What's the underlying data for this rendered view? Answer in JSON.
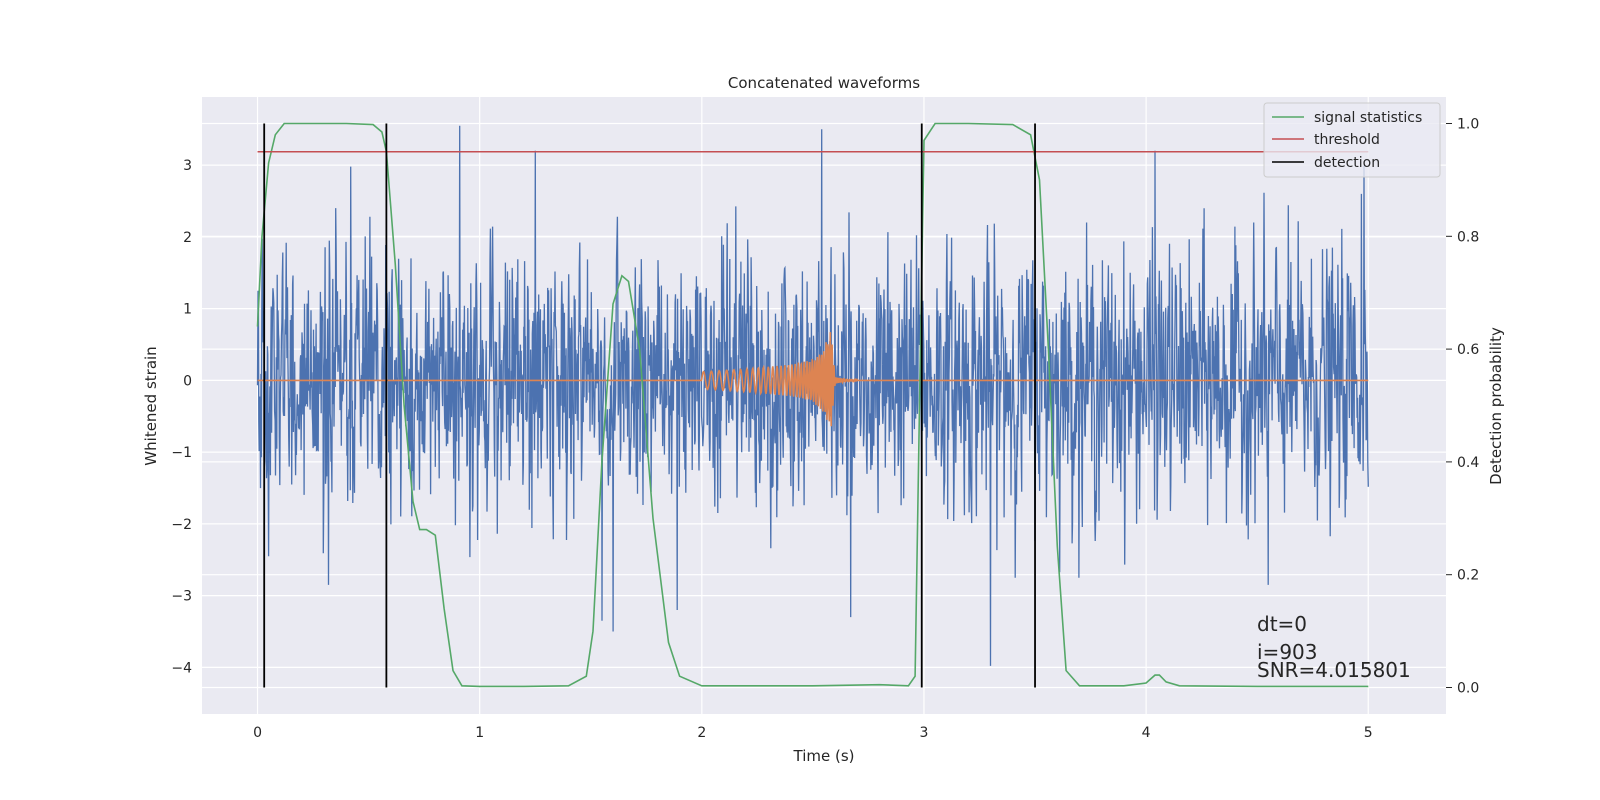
{
  "chart_data": {
    "type": "line",
    "title": "Concatenated waveforms",
    "xlabel": "Time (s)",
    "ylabel": "Whitened strain",
    "y2label": "Detection probability",
    "xlim": [
      -0.25,
      5.35
    ],
    "ylim": [
      -4.65,
      3.95
    ],
    "y2lim": [
      -0.047,
      1.047
    ],
    "xticks": [
      0,
      1,
      2,
      3,
      4,
      5
    ],
    "xtick_labels": [
      "0",
      "1",
      "2",
      "3",
      "4",
      "5"
    ],
    "yticks": [
      -4,
      -3,
      -2,
      -1,
      0,
      1,
      2,
      3
    ],
    "ytick_labels": [
      "−4",
      "−3",
      "−2",
      "−1",
      "0",
      "1",
      "2",
      "3"
    ],
    "y2ticks": [
      0.0,
      0.2,
      0.4,
      0.6,
      0.8,
      1.0
    ],
    "y2tick_labels": [
      "0.0",
      "0.2",
      "0.4",
      "0.6",
      "0.8",
      "1.0"
    ],
    "grid": true,
    "legend_position": "top-right",
    "colors": {
      "whitened_strain": "#4c72b0",
      "injected_waveform": "#dd8452",
      "signal_statistics": "#55a868",
      "threshold": "#c44e52",
      "detection": "#000000",
      "axes_background": "#eaeaf2"
    },
    "series": [
      {
        "key": "whitened_strain",
        "axis": "left",
        "style": "noise",
        "x_range": [
          0,
          5
        ],
        "amplitude_envelope": 2.2,
        "peaks": [
          [
            0.91,
            3.55
          ],
          [
            1.25,
            3.2
          ],
          [
            2.54,
            3.5
          ],
          [
            0.42,
            2.98
          ],
          [
            4.04,
            3.2
          ],
          [
            1.6,
            -3.5
          ],
          [
            3.3,
            -3.98
          ],
          [
            1.89,
            -3.2
          ],
          [
            2.67,
            -3.3
          ],
          [
            4.55,
            -2.85
          ],
          [
            0.32,
            -2.85
          ],
          [
            0.05,
            -2.45
          ],
          [
            0.58,
            -2.5
          ],
          [
            1.55,
            -3.35
          ],
          [
            4.97,
            2.6
          ],
          [
            4.98,
            3.0
          ]
        ]
      },
      {
        "key": "injected_waveform",
        "axis": "left",
        "style": "chirp",
        "x": [
          0,
          2.0,
          2.2,
          2.4,
          2.5,
          2.55,
          2.58,
          2.6,
          2.65,
          5
        ],
        "envelope": [
          0,
          0.12,
          0.16,
          0.22,
          0.3,
          0.45,
          0.72,
          0.05,
          0.01,
          0
        ]
      },
      {
        "name": "signal statistics",
        "key": "signal_statistics",
        "axis": "right",
        "x": [
          0.0,
          0.02,
          0.05,
          0.08,
          0.12,
          0.2,
          0.4,
          0.52,
          0.56,
          0.58,
          0.62,
          0.66,
          0.7,
          0.73,
          0.76,
          0.8,
          0.84,
          0.88,
          0.92,
          1.0,
          1.2,
          1.4,
          1.48,
          1.51,
          1.55,
          1.6,
          1.64,
          1.67,
          1.72,
          1.78,
          1.85,
          1.9,
          2.0,
          2.5,
          2.8,
          2.93,
          2.96,
          2.98,
          3.0,
          3.05,
          3.2,
          3.4,
          3.48,
          3.52,
          3.56,
          3.6,
          3.64,
          3.7,
          3.9,
          4.0,
          4.04,
          4.06,
          4.09,
          4.15,
          4.5,
          5.0
        ],
        "y": [
          0.64,
          0.8,
          0.93,
          0.98,
          1.0,
          1.0,
          1.0,
          0.998,
          0.985,
          0.95,
          0.75,
          0.5,
          0.33,
          0.28,
          0.28,
          0.27,
          0.14,
          0.03,
          0.003,
          0.002,
          0.002,
          0.003,
          0.02,
          0.1,
          0.4,
          0.68,
          0.73,
          0.72,
          0.6,
          0.3,
          0.08,
          0.02,
          0.003,
          0.003,
          0.005,
          0.003,
          0.02,
          0.5,
          0.97,
          1.0,
          1.0,
          0.998,
          0.98,
          0.9,
          0.6,
          0.25,
          0.03,
          0.003,
          0.003,
          0.008,
          0.022,
          0.022,
          0.01,
          0.003,
          0.002,
          0.002
        ]
      },
      {
        "name": "threshold",
        "key": "threshold",
        "axis": "right",
        "x": [
          0,
          5
        ],
        "y": [
          0.95,
          0.95
        ]
      },
      {
        "name": "detection",
        "key": "detection",
        "axis": "right",
        "style": "vlines",
        "x": [
          0.03,
          0.58,
          2.99,
          3.5
        ],
        "y_range": [
          0.0,
          1.0
        ]
      }
    ],
    "legend": [
      "signal statistics",
      "threshold",
      "detection"
    ],
    "annotations": [
      "dt=0",
      "i=903",
      "SNR=4.015801"
    ]
  }
}
